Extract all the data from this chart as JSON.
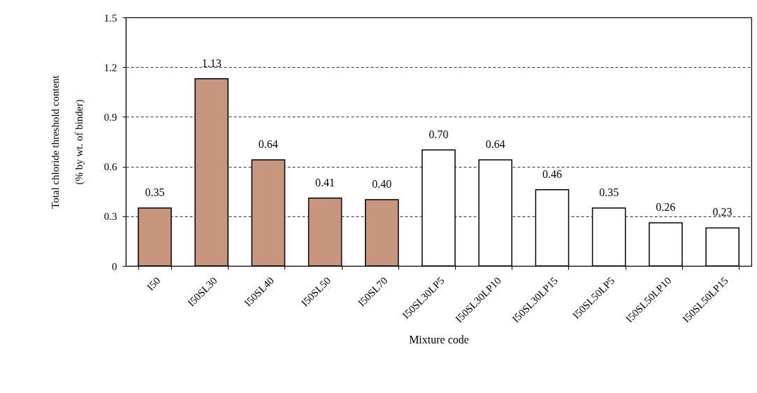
{
  "chart_data": {
    "type": "bar",
    "xlabel": "Mixture code",
    "ylabel": "Total chloride threshold content\n(% by wt. of binder)",
    "categories": [
      "I50",
      "I50SL30",
      "I50SL40",
      "I50SL50",
      "I50SL70",
      "I50SL30LP5",
      "I50SL30LP10",
      "I50SL30LP15",
      "I50SL50LP5",
      "I50SL50LP10",
      "I50SL50LP15"
    ],
    "values": [
      0.35,
      1.13,
      0.64,
      0.41,
      0.4,
      0.7,
      0.64,
      0.46,
      0.35,
      0.26,
      0.23
    ],
    "value_labels": [
      "0.35",
      "1.13",
      "0.64",
      "0.41",
      "0.40",
      "0.70",
      "0.64",
      "0.46",
      "0.35",
      "0.26",
      "0.23"
    ],
    "colors": [
      "#c8957e",
      "#c8957e",
      "#c8957e",
      "#c8957e",
      "#c8957e",
      "#ffffff",
      "#ffffff",
      "#ffffff",
      "#ffffff",
      "#ffffff",
      "#ffffff"
    ],
    "ylim": [
      0,
      1.5
    ],
    "yticks": [
      0,
      0.3,
      0.6,
      0.9,
      1.2,
      1.5
    ],
    "grid": "y"
  }
}
